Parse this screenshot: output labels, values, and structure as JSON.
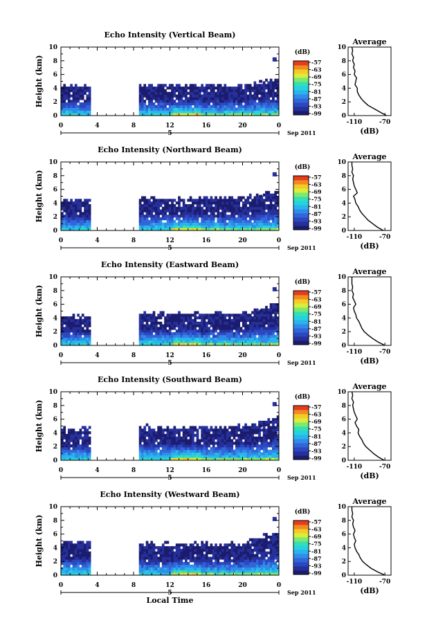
{
  "colors": {
    "scale": [
      "#1c1c6e",
      "#26309a",
      "#2c48c0",
      "#3266d8",
      "#2f8ce8",
      "#2ab4ec",
      "#26d2e0",
      "#34e0b0",
      "#7ee870",
      "#d8ee3a",
      "#f6c828",
      "#f08a22",
      "#e43c1c"
    ],
    "line": "#000000"
  },
  "chart_data": [
    {
      "type": "heatmap",
      "title": "Echo Intensity (Vertical Beam)",
      "xlabel": "",
      "ylabel": "Height (km)",
      "xlim": [
        0,
        24
      ],
      "ylim": [
        0,
        10
      ],
      "xticks": [
        "0",
        "4",
        "8",
        "12",
        "16",
        "20",
        "0"
      ],
      "yticks": [
        "0",
        "2",
        "4",
        "6",
        "8",
        "10"
      ],
      "date_marker": "5",
      "date_label": "Sep 2011",
      "colorbar": {
        "unit": "(dB)",
        "ticks": [
          "-57",
          "-63",
          "-69",
          "-75",
          "-81",
          "-87",
          "-93",
          "-99"
        ]
      },
      "data_gap_hours": [
        3.2,
        8.6
      ],
      "echo_top_km": {
        "before_gap": 4.0,
        "after_gap": 4.2,
        "late_evening": 5.0
      },
      "average_profile": {
        "title": "Average",
        "xlabel": "(dB)",
        "xticks": [
          "-110",
          "-70"
        ],
        "xlim": [
          -118,
          -62
        ],
        "height_km": [
          0,
          0.5,
          1,
          1.5,
          2,
          2.5,
          3,
          3.5,
          4,
          4.5,
          5,
          5.5,
          6,
          6.5,
          7,
          7.5,
          8,
          8.5,
          9,
          9.5,
          10
        ],
        "value_db": [
          -68,
          -76,
          -84,
          -92,
          -97,
          -101,
          -104,
          -106,
          -106,
          -109,
          -108,
          -107,
          -110,
          -109,
          -111,
          -110,
          -112,
          -111,
          -113,
          -112,
          -113
        ]
      }
    },
    {
      "type": "heatmap",
      "title": "Echo Intensity (Northward Beam)",
      "xlabel": "",
      "ylabel": "Height (km)",
      "xlim": [
        0,
        24
      ],
      "ylim": [
        0,
        10
      ],
      "xticks": [
        "0",
        "4",
        "8",
        "12",
        "16",
        "20",
        "0"
      ],
      "yticks": [
        "0",
        "2",
        "4",
        "6",
        "8",
        "10"
      ],
      "date_marker": "5",
      "date_label": "Sep 2011",
      "colorbar": {
        "unit": "(dB)",
        "ticks": [
          "-57",
          "-63",
          "-69",
          "-75",
          "-81",
          "-87",
          "-93",
          "-99"
        ]
      },
      "data_gap_hours": [
        3.2,
        8.6
      ],
      "echo_top_km": {
        "before_gap": 4.2,
        "after_gap": 4.5,
        "late_evening": 5.5
      },
      "average_profile": {
        "title": "Average",
        "xlabel": "(dB)",
        "xticks": [
          "-110",
          "-70"
        ],
        "xlim": [
          -118,
          -62
        ],
        "height_km": [
          0,
          0.5,
          1,
          1.5,
          2,
          2.5,
          3,
          3.5,
          4,
          4.5,
          5,
          5.5,
          6,
          6.5,
          7,
          7.5,
          8,
          8.5,
          9,
          9.5,
          10
        ],
        "value_db": [
          -72,
          -80,
          -86,
          -92,
          -96,
          -100,
          -103,
          -105,
          -108,
          -109,
          -111,
          -106,
          -108,
          -110,
          -111,
          -112,
          -111,
          -113,
          -112,
          -113,
          -113
        ]
      }
    },
    {
      "type": "heatmap",
      "title": "Echo Intensity (Eastward Beam)",
      "xlabel": "",
      "ylabel": "Height (km)",
      "xlim": [
        0,
        24
      ],
      "ylim": [
        0,
        10
      ],
      "xticks": [
        "0",
        "4",
        "8",
        "12",
        "16",
        "20",
        "0"
      ],
      "yticks": [
        "0",
        "2",
        "4",
        "6",
        "8",
        "10"
      ],
      "date_marker": "5",
      "date_label": "Sep 2011",
      "colorbar": {
        "unit": "(dB)",
        "ticks": [
          "-57",
          "-63",
          "-69",
          "-75",
          "-81",
          "-87",
          "-93",
          "-99"
        ]
      },
      "data_gap_hours": [
        3.2,
        8.6
      ],
      "echo_top_km": {
        "before_gap": 4.0,
        "after_gap": 4.4,
        "late_evening": 5.8
      },
      "average_profile": {
        "title": "Average",
        "xlabel": "(dB)",
        "xticks": [
          "-110",
          "-70"
        ],
        "xlim": [
          -118,
          -62
        ],
        "height_km": [
          0,
          0.5,
          1,
          1.5,
          2,
          2.5,
          3,
          3.5,
          4,
          4.5,
          5,
          5.5,
          6,
          6.5,
          7,
          7.5,
          8,
          8.5,
          9,
          9.5,
          10
        ],
        "value_db": [
          -70,
          -79,
          -86,
          -92,
          -97,
          -100,
          -102,
          -104,
          -107,
          -108,
          -110,
          -111,
          -108,
          -110,
          -112,
          -111,
          -113,
          -112,
          -113,
          -113,
          -113
        ]
      }
    },
    {
      "type": "heatmap",
      "title": "Echo Intensity (Southward Beam)",
      "xlabel": "",
      "ylabel": "Height (km)",
      "xlim": [
        0,
        24
      ],
      "ylim": [
        0,
        10
      ],
      "xticks": [
        "0",
        "4",
        "8",
        "12",
        "16",
        "20",
        "0"
      ],
      "yticks": [
        "0",
        "2",
        "4",
        "6",
        "8",
        "10"
      ],
      "date_marker": "5",
      "date_label": "Sep 2011",
      "colorbar": {
        "unit": "(dB)",
        "ticks": [
          "-57",
          "-63",
          "-69",
          "-75",
          "-81",
          "-87",
          "-93",
          "-99"
        ]
      },
      "data_gap_hours": [
        3.2,
        8.6
      ],
      "echo_top_km": {
        "before_gap": 4.3,
        "after_gap": 4.6,
        "late_evening": 6.0
      },
      "average_profile": {
        "title": "Average",
        "xlabel": "(dB)",
        "xticks": [
          "-110",
          "-70"
        ],
        "xlim": [
          -118,
          -62
        ],
        "height_km": [
          0,
          0.5,
          1,
          1.5,
          2,
          2.5,
          3,
          3.5,
          4,
          4.5,
          5,
          5.5,
          6,
          6.5,
          7,
          7.5,
          8,
          8.5,
          9,
          9.5,
          10
        ],
        "value_db": [
          -71,
          -79,
          -85,
          -90,
          -95,
          -98,
          -100,
          -103,
          -105,
          -104,
          -107,
          -109,
          -106,
          -108,
          -110,
          -111,
          -112,
          -111,
          -113,
          -112,
          -113
        ]
      }
    },
    {
      "type": "heatmap",
      "title": "Echo Intensity (Westward Beam)",
      "xlabel": "Local Time",
      "ylabel": "Height (km)",
      "xlim": [
        0,
        24
      ],
      "ylim": [
        0,
        10
      ],
      "xticks": [
        "0",
        "4",
        "8",
        "12",
        "16",
        "20",
        "0"
      ],
      "yticks": [
        "0",
        "2",
        "4",
        "6",
        "8",
        "10"
      ],
      "date_marker": "5",
      "date_label": "Sep 2011",
      "colorbar": {
        "unit": "(dB)",
        "ticks": [
          "-57",
          "-63",
          "-69",
          "-75",
          "-81",
          "-87",
          "-93",
          "-99"
        ]
      },
      "data_gap_hours": [
        3.2,
        8.6
      ],
      "echo_top_km": {
        "before_gap": 4.6,
        "after_gap": 4.3,
        "late_evening": 6.2
      },
      "average_profile": {
        "title": "Average",
        "xlabel": "(dB)",
        "xticks": [
          "-110",
          "-70"
        ],
        "xlim": [
          -118,
          -62
        ],
        "height_km": [
          0,
          0.5,
          1,
          1.5,
          2,
          2.5,
          3,
          3.5,
          4,
          4.5,
          5,
          5.5,
          6,
          6.5,
          7,
          7.5,
          8,
          8.5,
          9,
          9.5,
          10
        ],
        "value_db": [
          -70,
          -80,
          -88,
          -94,
          -99,
          -102,
          -104,
          -107,
          -109,
          -110,
          -108,
          -110,
          -111,
          -109,
          -111,
          -112,
          -111,
          -113,
          -112,
          -113,
          -113
        ]
      }
    }
  ]
}
